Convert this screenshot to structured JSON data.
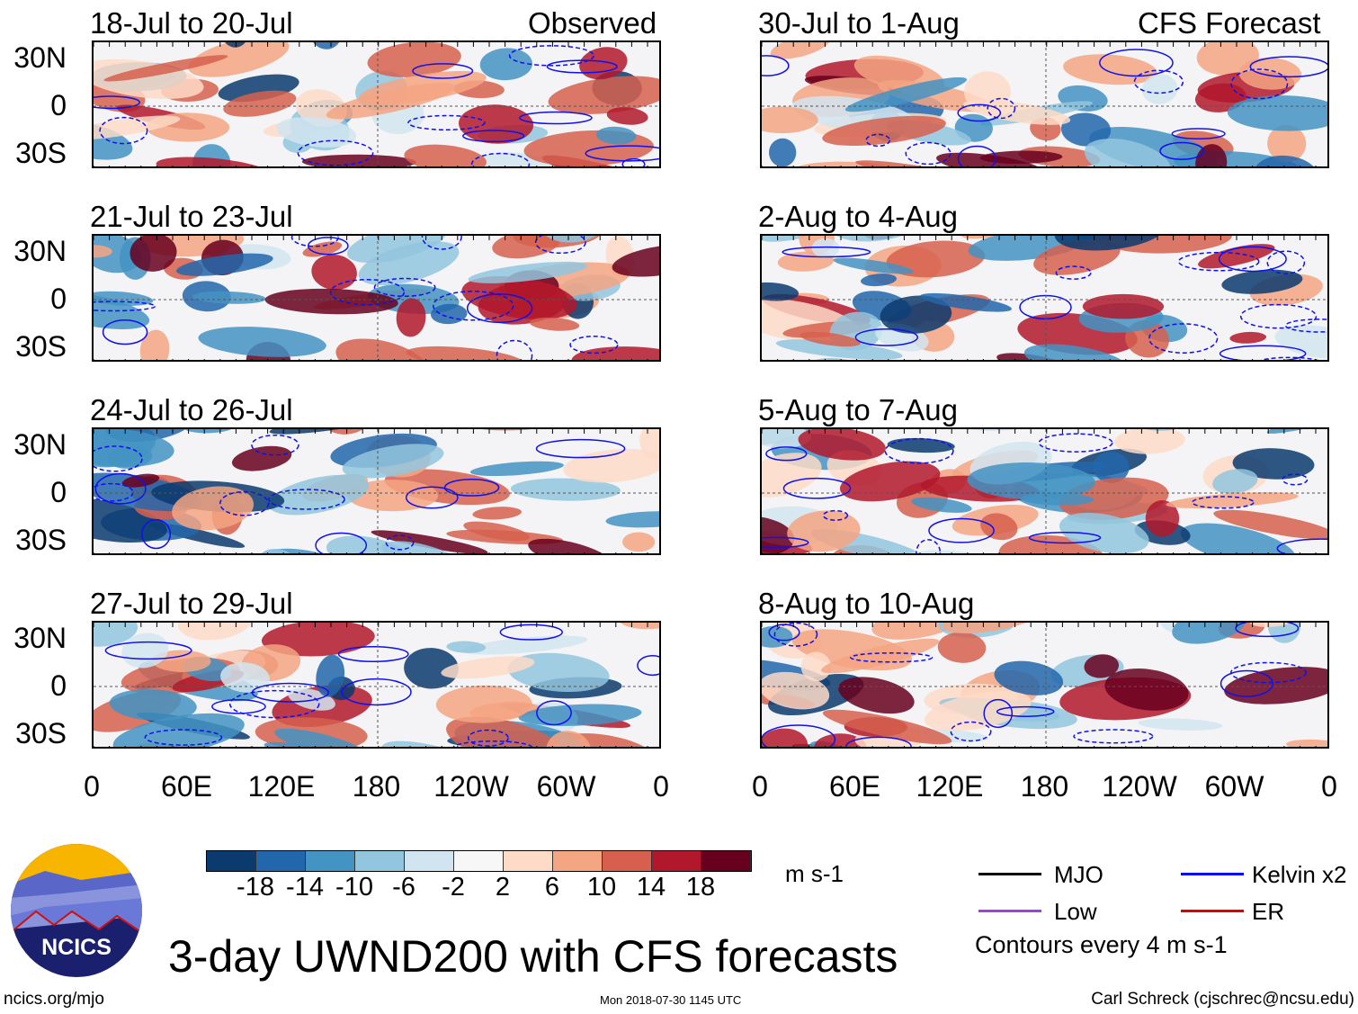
{
  "header": {
    "left_label": "Observed",
    "right_label": "CFS Forecast"
  },
  "panels": {
    "observed": [
      "18-Jul to 20-Jul",
      "21-Jul to 23-Jul",
      "24-Jul to 26-Jul",
      "27-Jul to 29-Jul"
    ],
    "forecast": [
      "30-Jul to 1-Aug",
      "2-Aug to 4-Aug",
      "5-Aug to 7-Aug",
      "8-Aug to 10-Aug"
    ]
  },
  "lat_labels": [
    "30N",
    "0",
    "30S"
  ],
  "lon_labels": [
    "0",
    "60E",
    "120E",
    "180",
    "120W",
    "60W",
    "0"
  ],
  "colorbar": {
    "colors": [
      "#0b3a6e",
      "#2266ac",
      "#4393c3",
      "#92c5de",
      "#d1e5f0",
      "#f7f7f7",
      "#fddbc7",
      "#f4a582",
      "#d6604d",
      "#b2182b",
      "#67001f"
    ],
    "labels": [
      "-18",
      "-14",
      "-10",
      "-6",
      "-2",
      "2",
      "6",
      "10",
      "14",
      "18"
    ],
    "units": "m s-1"
  },
  "legend": {
    "items": [
      {
        "label": "MJO",
        "color": "#000000"
      },
      {
        "label": "Kelvin x2",
        "color": "#0000ff"
      },
      {
        "label": "Low",
        "color": "#a040e0"
      },
      {
        "label": "ER",
        "color": "#e00000"
      }
    ],
    "contours": "Contours every 4 m s-1"
  },
  "title": "3-day UWND200 with CFS forecasts",
  "logo_text": "NCICS",
  "footer": {
    "url": "ncics.org/mjo",
    "timestamp": "Mon 2018-07-30 1145 UTC",
    "author": "Carl Schreck (cjschrec@ncsu.edu)"
  }
}
